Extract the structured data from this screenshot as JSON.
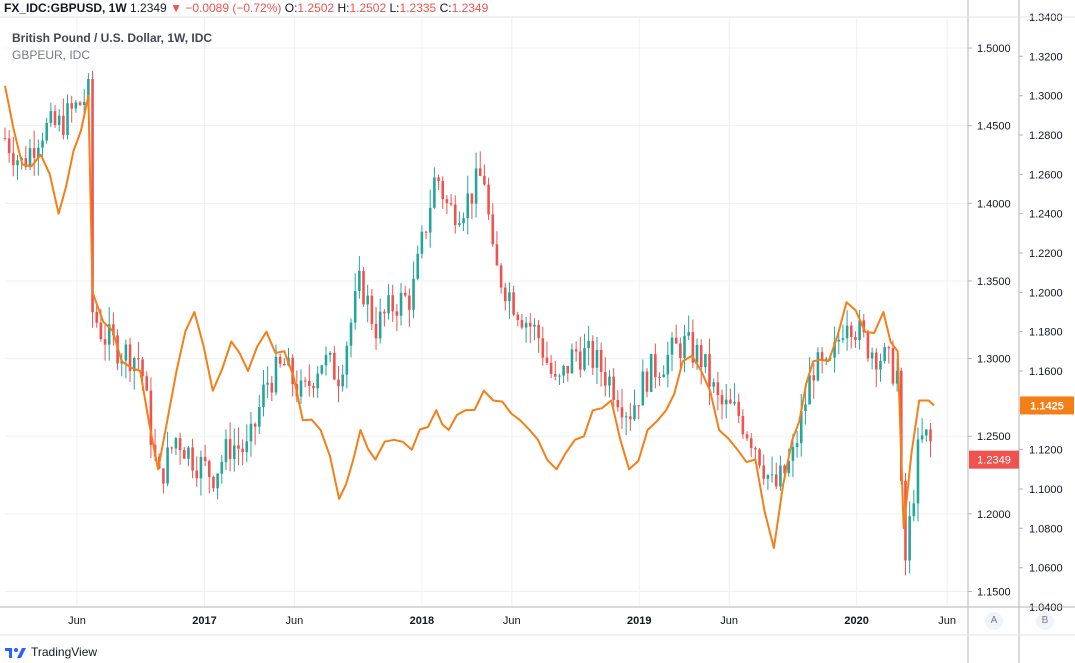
{
  "header": {
    "symbol": "FX_IDC:GBPUSD, 1W",
    "last": "1.2349",
    "arrow": "▼",
    "change": "−0.0089 (−0.72%)",
    "o_label": "O:",
    "o": "1.2502",
    "h_label": "H:",
    "h": "1.2502",
    "l_label": "L:",
    "l": "1.2335",
    "c_label": "C:",
    "c": "1.2349"
  },
  "legend": {
    "main": "British Pound / U.S. Dollar, 1W, IDC",
    "compare": "GBPEUR, IDC"
  },
  "footer": {
    "brand": "TradingView"
  },
  "axis_buttons": {
    "a": "A",
    "b": "B"
  },
  "colors": {
    "up": "#26a69a",
    "down": "#ef5350",
    "compare": "#f57f17",
    "grid": "#eef0f4"
  },
  "chart_data": [
    {
      "type": "candlestick",
      "series_name": "British Pound / U.S. Dollar, 1W, IDC",
      "ylim": [
        1.14,
        1.52
      ],
      "right_axis": "A",
      "yticks": [
        "1.5000",
        "1.4500",
        "1.4000",
        "1.3500",
        "1.3000",
        "1.2500",
        "1.2000",
        "1.1500"
      ],
      "last_value_label": "1.2349",
      "xlim": [
        "2016-02-01",
        "2020-07-06"
      ],
      "xticks": [
        {
          "label": "Jun",
          "date": "2016-06-01"
        },
        {
          "label": "2017",
          "date": "2017-01-01"
        },
        {
          "label": "Jun",
          "date": "2017-06-01"
        },
        {
          "label": "2018",
          "date": "2018-01-01"
        },
        {
          "label": "Jun",
          "date": "2018-06-01"
        },
        {
          "label": "2019",
          "date": "2019-01-01"
        },
        {
          "label": "Jun",
          "date": "2019-06-01"
        },
        {
          "label": "2020",
          "date": "2020-01-01"
        },
        {
          "label": "Jun",
          "date": "2020-06-01"
        }
      ],
      "close_anchors": [
        [
          "2016-02-01",
          1.442
        ],
        [
          "2016-03-01",
          1.425
        ],
        [
          "2016-04-01",
          1.447
        ],
        [
          "2016-05-01",
          1.45
        ],
        [
          "2016-06-20",
          1.47
        ],
        [
          "2016-06-27",
          1.33
        ],
        [
          "2016-07-15",
          1.315
        ],
        [
          "2016-08-15",
          1.305
        ],
        [
          "2016-09-15",
          1.3
        ],
        [
          "2016-10-15",
          1.22
        ],
        [
          "2016-11-15",
          1.25
        ],
        [
          "2016-12-15",
          1.235
        ],
        [
          "2017-01-15",
          1.225
        ],
        [
          "2017-02-15",
          1.245
        ],
        [
          "2017-03-15",
          1.24
        ],
        [
          "2017-04-15",
          1.285
        ],
        [
          "2017-05-15",
          1.295
        ],
        [
          "2017-06-15",
          1.275
        ],
        [
          "2017-07-15",
          1.3
        ],
        [
          "2017-08-15",
          1.29
        ],
        [
          "2017-09-20",
          1.35
        ],
        [
          "2017-10-15",
          1.32
        ],
        [
          "2017-11-15",
          1.335
        ],
        [
          "2017-12-15",
          1.34
        ],
        [
          "2018-01-25",
          1.42
        ],
        [
          "2018-02-15",
          1.395
        ],
        [
          "2018-03-15",
          1.4
        ],
        [
          "2018-04-15",
          1.42
        ],
        [
          "2018-05-01",
          1.36
        ],
        [
          "2018-06-15",
          1.33
        ],
        [
          "2018-07-15",
          1.315
        ],
        [
          "2018-08-15",
          1.28
        ],
        [
          "2018-09-15",
          1.305
        ],
        [
          "2018-10-15",
          1.3
        ],
        [
          "2018-11-15",
          1.285
        ],
        [
          "2018-12-15",
          1.265
        ],
        [
          "2019-01-15",
          1.29
        ],
        [
          "2019-02-15",
          1.3
        ],
        [
          "2019-03-15",
          1.31
        ],
        [
          "2019-04-15",
          1.3
        ],
        [
          "2019-05-15",
          1.27
        ],
        [
          "2019-06-15",
          1.265
        ],
        [
          "2019-07-15",
          1.245
        ],
        [
          "2019-08-15",
          1.215
        ],
        [
          "2019-09-15",
          1.235
        ],
        [
          "2019-10-20",
          1.295
        ],
        [
          "2019-11-15",
          1.29
        ],
        [
          "2019-12-15",
          1.33
        ],
        [
          "2020-01-15",
          1.31
        ],
        [
          "2020-02-15",
          1.3
        ],
        [
          "2020-03-10",
          1.29
        ],
        [
          "2020-03-20",
          1.16
        ],
        [
          "2020-04-15",
          1.245
        ],
        [
          "2020-05-01",
          1.25
        ],
        [
          "2020-05-10",
          1.2349
        ]
      ]
    },
    {
      "type": "line",
      "series_name": "GBPEUR, IDC",
      "ylim": [
        1.04,
        1.34
      ],
      "right_axis": "B",
      "yticks": [
        "1.3400",
        "1.3200",
        "1.3000",
        "1.2800",
        "1.2600",
        "1.2400",
        "1.2200",
        "1.2000",
        "1.1800",
        "1.1600",
        "1.1400",
        "1.1200",
        "1.1000",
        "1.0800",
        "1.0600",
        "1.0400"
      ],
      "last_value_label": "1.1425",
      "points": [
        [
          "2016-02-01",
          1.305
        ],
        [
          "2016-03-01",
          1.265
        ],
        [
          "2016-04-01",
          1.27
        ],
        [
          "2016-05-01",
          1.24
        ],
        [
          "2016-06-20",
          1.3
        ],
        [
          "2016-06-27",
          1.2
        ],
        [
          "2016-07-15",
          1.185
        ],
        [
          "2016-08-15",
          1.165
        ],
        [
          "2016-09-15",
          1.16
        ],
        [
          "2016-10-15",
          1.11
        ],
        [
          "2016-11-15",
          1.16
        ],
        [
          "2016-12-15",
          1.19
        ],
        [
          "2017-01-15",
          1.15
        ],
        [
          "2017-02-15",
          1.175
        ],
        [
          "2017-03-15",
          1.16
        ],
        [
          "2017-04-15",
          1.18
        ],
        [
          "2017-05-15",
          1.17
        ],
        [
          "2017-06-15",
          1.135
        ],
        [
          "2017-07-15",
          1.13
        ],
        [
          "2017-08-15",
          1.095
        ],
        [
          "2017-09-20",
          1.13
        ],
        [
          "2017-10-15",
          1.115
        ],
        [
          "2017-11-15",
          1.125
        ],
        [
          "2017-12-15",
          1.12
        ],
        [
          "2018-01-25",
          1.14
        ],
        [
          "2018-02-15",
          1.13
        ],
        [
          "2018-03-15",
          1.14
        ],
        [
          "2018-04-15",
          1.15
        ],
        [
          "2018-05-01",
          1.145
        ],
        [
          "2018-06-15",
          1.135
        ],
        [
          "2018-07-15",
          1.125
        ],
        [
          "2018-08-15",
          1.11
        ],
        [
          "2018-09-15",
          1.125
        ],
        [
          "2018-10-15",
          1.14
        ],
        [
          "2018-11-15",
          1.145
        ],
        [
          "2018-12-15",
          1.11
        ],
        [
          "2019-01-15",
          1.13
        ],
        [
          "2019-02-15",
          1.14
        ],
        [
          "2019-03-15",
          1.165
        ],
        [
          "2019-04-15",
          1.16
        ],
        [
          "2019-05-15",
          1.13
        ],
        [
          "2019-06-15",
          1.12
        ],
        [
          "2019-07-15",
          1.115
        ],
        [
          "2019-08-15",
          1.07
        ],
        [
          "2019-09-15",
          1.125
        ],
        [
          "2019-10-20",
          1.165
        ],
        [
          "2019-11-15",
          1.165
        ],
        [
          "2019-12-15",
          1.195
        ],
        [
          "2020-01-15",
          1.18
        ],
        [
          "2020-02-15",
          1.19
        ],
        [
          "2020-03-10",
          1.17
        ],
        [
          "2020-03-20",
          1.08
        ],
        [
          "2020-04-15",
          1.145
        ],
        [
          "2020-05-01",
          1.145
        ],
        [
          "2020-05-10",
          1.1425
        ]
      ]
    }
  ]
}
